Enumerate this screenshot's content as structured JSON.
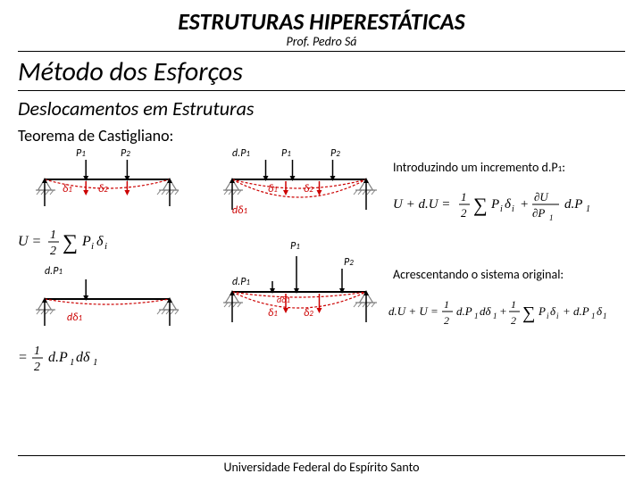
{
  "header": {
    "course_title": "ESTRUTURAS HIPERESTÁTICAS",
    "prof": "Prof. Pedro Sá"
  },
  "titles": {
    "main": "Método dos Esforços",
    "sub": "Deslocamentos em Estruturas",
    "theorem": "Teorema de Castigliano:"
  },
  "footer": "Universidade Federal do Espírito Santo",
  "labels": {
    "P1": "P",
    "P1_sub": "1",
    "P2": "P",
    "P2_sub": "2",
    "dP1": "d.P",
    "dP1_sub": "1",
    "d1": "δ",
    "d1_sub": "1",
    "d2": "δ",
    "d2_sub": "2",
    "dd1": "dδ",
    "dd1_sub": "1"
  },
  "annot": {
    "intro": "Introduzindo um incremento d.P",
    "intro_sub": "1",
    "intro_end": ":",
    "acres": "Acrescentando o sistema original:"
  },
  "equations": {
    "U": "U = ½ ∑ Pᵢδᵢ",
    "half_dPdd": "= ½ d.P₁dδ₁",
    "UdU": "U + d.U = ½ ∑ Pᵢδᵢ + ∂U/∂P₁ d.P₁",
    "dUU": "d.U + U = ½ d.P₁dδ₁ + ½ ∑ Pᵢδᵢ + d.P₁δ₁"
  },
  "colors": {
    "beam": "#000000",
    "load_arrow": "#000000",
    "deflection": "#cc0000",
    "support": "#808080",
    "support_fill": "#ffffff"
  },
  "beam": {
    "width": 140,
    "support_size": 12,
    "load_height": 22,
    "defl_depth": 10
  }
}
